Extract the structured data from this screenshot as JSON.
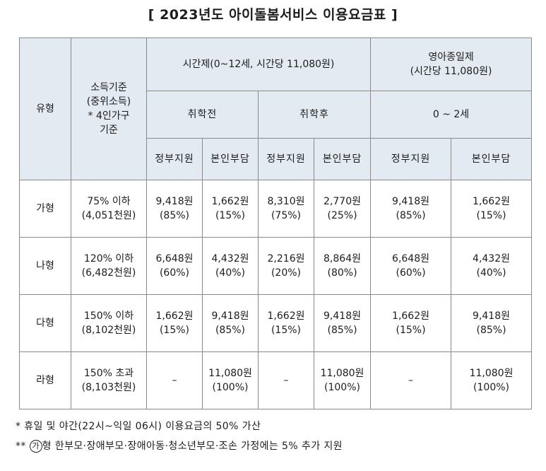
{
  "title": "[ 2023년도 아이돌봄서비스 이용요금표 ]",
  "table": {
    "col_type": "유형",
    "col_income": [
      "소득기준",
      "(중위소득)",
      "* 4인가구",
      "기준"
    ],
    "group_hourly": "시간제(0~12세, 시간당 11,080원)",
    "group_fullday": [
      "영아종일제",
      "(시간당 11,080원)"
    ],
    "sub_preschool": "취학전",
    "sub_school": "취학후",
    "sub_infant": "0 ~ 2세",
    "col_gov": "정부지원",
    "col_self": "본인부담",
    "rows": [
      {
        "type": "가형",
        "income": [
          "75% 이하",
          "(4,051천원)"
        ],
        "cells": [
          [
            "9,418원",
            "(85%)"
          ],
          [
            "1,662원",
            "(15%)"
          ],
          [
            "8,310원",
            "(75%)"
          ],
          [
            "2,770원",
            "(25%)"
          ],
          [
            "9,418원",
            "(85%)"
          ],
          [
            "1,662원",
            "(15%)"
          ]
        ]
      },
      {
        "type": "나형",
        "income": [
          "120% 이하",
          "(6,482천원)"
        ],
        "cells": [
          [
            "6,648원",
            "(60%)"
          ],
          [
            "4,432원",
            "(40%)"
          ],
          [
            "2,216원",
            "(20%)"
          ],
          [
            "8,864원",
            "(80%)"
          ],
          [
            "6,648원",
            "(60%)"
          ],
          [
            "4,432원",
            "(40%)"
          ]
        ]
      },
      {
        "type": "다형",
        "income": [
          "150% 이하",
          "(8,102천원)"
        ],
        "cells": [
          [
            "1,662원",
            "(15%)"
          ],
          [
            "9,418원",
            "(85%)"
          ],
          [
            "1,662원",
            "(15%)"
          ],
          [
            "9,418원",
            "(85%)"
          ],
          [
            "1,662원",
            "(15%)"
          ],
          [
            "9,418원",
            "(85%)"
          ]
        ]
      },
      {
        "type": "라형",
        "income": [
          "150% 초과",
          "(8,103천원)"
        ],
        "cells": [
          [
            "–"
          ],
          [
            "11,080원",
            "(100%)"
          ],
          [
            "–"
          ],
          [
            "11,080원",
            "(100%)"
          ],
          [
            "–"
          ],
          [
            "11,080원",
            "(100%)"
          ]
        ]
      }
    ]
  },
  "notes": {
    "note1": "* 휴일 및 야간(22시~익일 06시) 이용요금의 50% 가산",
    "note2_prefix": "**",
    "note2_mark": "가",
    "note2_text": "형 한부모·장애부모·장애아동·청소년부모·조손 가정에는 5% 추가 지원"
  }
}
